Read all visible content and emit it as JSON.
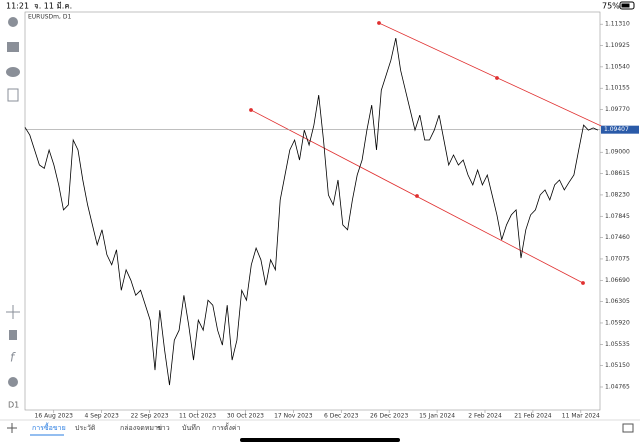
{
  "status_bar": {
    "time": "11:21",
    "date": "จ. 11 มี.ค.",
    "battery": "75%"
  },
  "timeframe": "D1",
  "chart_data": {
    "type": "line",
    "title": "EURUSDm, D1",
    "color": "#000000",
    "current_price": 1.09407,
    "ylim": [
      1.0435,
      1.1153
    ],
    "yticks": [
      {
        "value": 1.1131,
        "label": "1.11310"
      },
      {
        "value": 1.10925,
        "label": "1.10925"
      },
      {
        "value": 1.1054,
        "label": "1.10540"
      },
      {
        "value": 1.10155,
        "label": "1.10155"
      },
      {
        "value": 1.0977,
        "label": "1.09770"
      },
      {
        "value": 1.09,
        "label": "1.09000"
      },
      {
        "value": 1.08615,
        "label": "1.08615"
      },
      {
        "value": 1.0823,
        "label": "1.08230"
      },
      {
        "value": 1.07845,
        "label": "1.07845"
      },
      {
        "value": 1.0746,
        "label": "1.07460"
      },
      {
        "value": 1.07075,
        "label": "1.07075"
      },
      {
        "value": 1.0669,
        "label": "1.06690"
      },
      {
        "value": 1.06305,
        "label": "1.06305"
      },
      {
        "value": 1.0592,
        "label": "1.05920"
      },
      {
        "value": 1.05535,
        "label": "1.05535"
      },
      {
        "value": 1.0515,
        "label": "1.05150"
      },
      {
        "value": 1.04765,
        "label": "1.04765"
      }
    ],
    "xtick_labels": [
      "16 Aug 2023",
      "4 Sep 2023",
      "22 Sep 2023",
      "11 Oct 2023",
      "30 Oct 2023",
      "17 Nov 2023",
      "6 Dec 2023",
      "26 Dec 2023",
      "15 Jan 2024",
      "2 Feb 2024",
      "21 Feb 2024",
      "11 Mar 2024"
    ],
    "values": [
      1.0945,
      1.0931,
      1.0904,
      1.0877,
      1.0871,
      1.0904,
      1.0877,
      1.0841,
      1.0796,
      1.0805,
      1.0922,
      1.0904,
      1.085,
      1.0805,
      1.0769,
      1.0733,
      1.076,
      1.0715,
      1.0697,
      1.0724,
      1.0651,
      1.0688,
      1.0669,
      1.0642,
      1.0651,
      1.0624,
      1.0597,
      1.0507,
      1.0615,
      1.0543,
      1.048,
      1.0561,
      1.0579,
      1.0642,
      1.0588,
      1.0525,
      1.0597,
      1.0579,
      1.0633,
      1.0624,
      1.0579,
      1.0552,
      1.0624,
      1.0525,
      1.0561,
      1.0651,
      1.0633,
      1.0697,
      1.0727,
      1.0706,
      1.066,
      1.0706,
      1.0688,
      1.0814,
      1.0859,
      1.0904,
      1.0922,
      1.0886,
      1.094,
      1.0913,
      1.0949,
      1.1003,
      1.0922,
      1.0823,
      1.0805,
      1.085,
      1.0769,
      1.076,
      1.0814,
      1.0859,
      1.0886,
      1.094,
      1.0985,
      1.0904,
      1.1012,
      1.1039,
      1.1066,
      1.1106,
      1.1048,
      1.1012,
      1.0976,
      1.094,
      1.0967,
      1.0922,
      1.0922,
      1.094,
      1.0967,
      1.0922,
      1.0877,
      1.0895,
      1.0877,
      1.0886,
      1.0859,
      1.0841,
      1.0868,
      1.0841,
      1.0859,
      1.0823,
      1.0787,
      1.0742,
      1.0769,
      1.0787,
      1.0796,
      1.0709,
      1.076,
      1.0787,
      1.0796,
      1.0823,
      1.0832,
      1.0814,
      1.0841,
      1.085,
      1.0832,
      1.0846,
      1.0859,
      1.0904,
      1.0949,
      1.094,
      1.0944,
      1.094
    ]
  },
  "tabs": [
    "การซื้อขาย",
    "ประวัติ",
    "กล่องจดหมาย",
    "ข่าว",
    "บันทึก",
    "การตั้งค่า"
  ]
}
